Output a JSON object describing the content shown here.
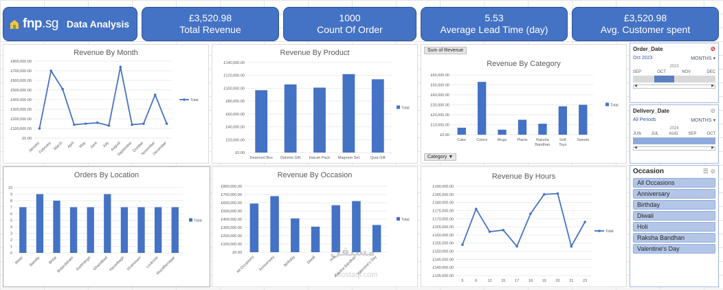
{
  "brand": {
    "logo_main": "fnp",
    "logo_domain": ".sg",
    "title": "Data Analysis"
  },
  "kpis": [
    {
      "value": "£3,520.98",
      "label": "Total Revenue"
    },
    {
      "value": "1000",
      "label": "Count Of Order"
    },
    {
      "value": "5.53",
      "label": "Average Lead Time (day)"
    },
    {
      "value": "£3,520.98",
      "label": "Avg. Customer spent"
    }
  ],
  "legend_label": "Total",
  "pivot": {
    "sum_button": "Sum of Revenue",
    "category_button": "Category"
  },
  "slicers": {
    "order_date": {
      "title": "Order_Date",
      "selection": "Oct 2023",
      "level": "MONTHS",
      "year": "2023",
      "months": [
        "SEP",
        "OCT",
        "NOV",
        "DEC"
      ]
    },
    "delivery_date": {
      "title": "Delivery_Date",
      "selection": "All Periods",
      "level": "MONTHS",
      "year": "2024",
      "months": [
        "JUN",
        "JUL",
        "AUG",
        "SEP",
        "OCT"
      ]
    },
    "occasion": {
      "title": "Occasion",
      "items": [
        "All Occasions",
        "Anniversary",
        "Birthday",
        "Diwali",
        "Holi",
        "Raksha Bandhan",
        "Valentine's Day"
      ]
    }
  },
  "watermark": {
    "main": "مستقل",
    "sub": "mostaql.com"
  },
  "chart_data": [
    {
      "id": "month",
      "type": "line",
      "title": "Revenue By Month",
      "categories": [
        "January",
        "February",
        "March",
        "April",
        "May",
        "June",
        "July",
        "August",
        "September",
        "October",
        "November",
        "December"
      ],
      "series": [
        {
          "name": "Total",
          "values": [
            100000,
            700000,
            510000,
            140000,
            150000,
            160000,
            130000,
            740000,
            140000,
            150000,
            450000,
            150000
          ]
        }
      ],
      "yticks": [
        "£0.00",
        "£100,000.00",
        "£200,000.00",
        "£300,000.00",
        "£400,000.00",
        "£500,000.00",
        "£600,000.00",
        "£700,000.00",
        "£800,000.00"
      ],
      "ylim": [
        0,
        800000
      ]
    },
    {
      "id": "product",
      "type": "bar",
      "title": "Revenue By Product",
      "categories": [
        "Deserunt Box",
        "Dolores Gift",
        "Harum Pack",
        "Magnam Set",
        "Quia Gift"
      ],
      "series": [
        {
          "name": "Total",
          "values": [
            97000,
            106000,
            101000,
            122000,
            114000
          ]
        }
      ],
      "yticks": [
        "£0.00",
        "£20,000.00",
        "£40,000.00",
        "£60,000.00",
        "£80,000.00",
        "£100,000.00",
        "£120,000.00",
        "£140,000.00"
      ],
      "ylim": [
        0,
        140000
      ]
    },
    {
      "id": "category",
      "type": "bar",
      "title": "Revenue By Category",
      "categories": [
        "Cake",
        "Colors",
        "Mugs",
        "Plants",
        "Raksha Bandhan",
        "Soft Toys",
        "Sweets"
      ],
      "series": [
        {
          "name": "Total",
          "values": [
            7000,
            53000,
            5000,
            15000,
            11000,
            28500,
            30000
          ]
        }
      ],
      "yticks": [
        "£0.00",
        "£10,000.00",
        "£20,000.00",
        "£30,000.00",
        "£40,000.00",
        "£50,000.00",
        "£60,000.00"
      ],
      "ylim": [
        0,
        60000
      ]
    },
    {
      "id": "location",
      "type": "bar",
      "title": "Orders By Location",
      "categories": [
        "Alwar",
        "Bareilly",
        "Bhilai",
        "Bulandshahr",
        "Durbhanga",
        "Ghaziabad",
        "Hazaribagh",
        "Khammam",
        "Lucknow",
        "Muzaffarnagar"
      ],
      "series": [
        {
          "name": "Total",
          "values": [
            7,
            9,
            8,
            7,
            7,
            9,
            7,
            7,
            7,
            7
          ]
        }
      ],
      "yticks": [
        "0",
        "1",
        "2",
        "3",
        "4",
        "5",
        "6",
        "7",
        "8",
        "9",
        "10"
      ],
      "ylim": [
        0,
        10
      ]
    },
    {
      "id": "occasion",
      "type": "bar",
      "title": "Revenue By Occasion",
      "categories": [
        "All Occasions",
        "Anniversary",
        "Birthday",
        "Diwali",
        "Holi",
        "Raksha Bandhan",
        "Valentine's Day"
      ],
      "series": [
        {
          "name": "Total",
          "values": [
            590000,
            680000,
            410000,
            310000,
            570000,
            620000,
            330000
          ]
        }
      ],
      "yticks": [
        "£0.00",
        "£100,000.00",
        "£200,000.00",
        "£300,000.00",
        "£400,000.00",
        "£500,000.00",
        "£600,000.00",
        "£700,000.00",
        "£800,000.00"
      ],
      "ylim": [
        0,
        800000
      ]
    },
    {
      "id": "hours",
      "type": "line",
      "title": "Revenue By Hours",
      "categories": [
        "5",
        "6",
        "12",
        "15",
        "17",
        "18",
        "19",
        "20",
        "21",
        "23"
      ],
      "series": [
        {
          "name": "Total",
          "values": [
            154000,
            176000,
            162000,
            163000,
            153000,
            173000,
            185000,
            185500,
            153000,
            168000
          ]
        }
      ],
      "yticks": [
        "£135,000.00",
        "£140,000.00",
        "£145,000.00",
        "£150,000.00",
        "£155,000.00",
        "£160,000.00",
        "£165,000.00",
        "£170,000.00",
        "£175,000.00",
        "£180,000.00",
        "£185,000.00",
        "£190,000.00"
      ],
      "ylim": [
        135000,
        190000
      ]
    }
  ]
}
